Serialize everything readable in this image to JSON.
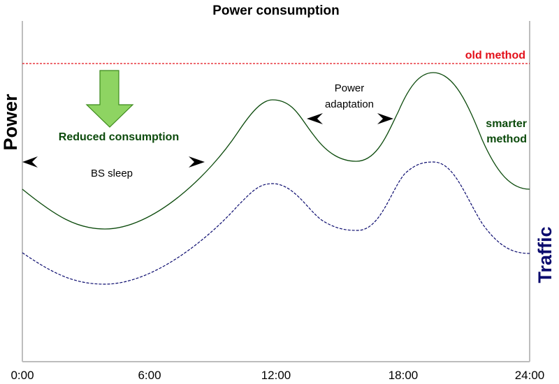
{
  "title": "Power consumption",
  "y_label_left": "Power",
  "y_label_right": "Traffic",
  "x_ticks": [
    "0:00",
    "6:00",
    "12:00",
    "18:00",
    "24:00"
  ],
  "annotations": {
    "old_method": "old method",
    "smarter_method_line1": "smarter",
    "smarter_method_line2": "method",
    "reduced_consumption": "Reduced consumption",
    "bs_sleep": "BS sleep",
    "power_adaptation_line1": "Power",
    "power_adaptation_line2": "adaptation"
  },
  "colors": {
    "old_method": "#e3101a",
    "smarter_method": "#0b4a0b",
    "traffic": "#0a0a6e",
    "reduced_arrow_fill": "#8ed462",
    "reduced_arrow_stroke": "#3d8a1d"
  }
}
